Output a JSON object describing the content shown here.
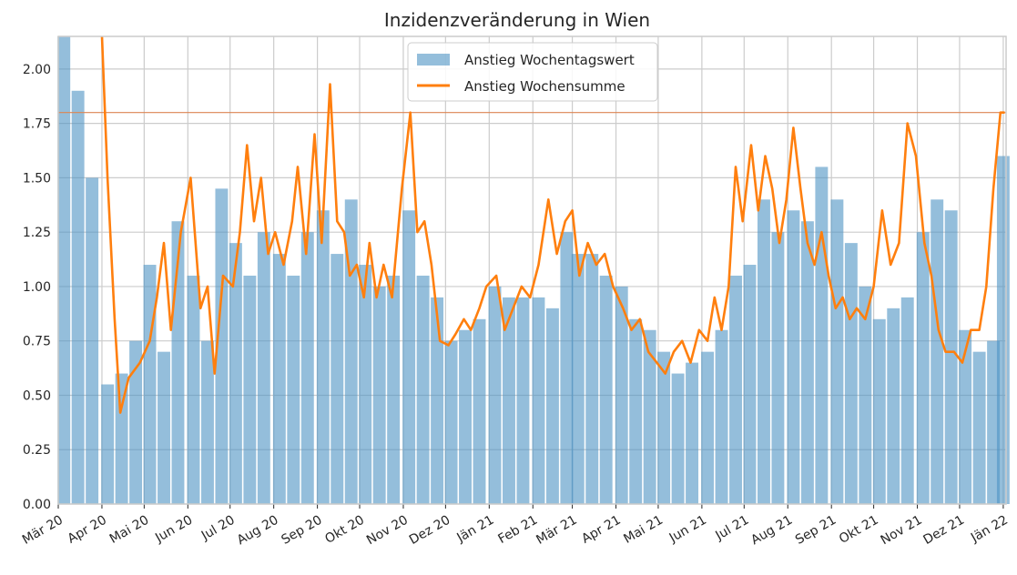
{
  "chart_data": {
    "type": "bar",
    "title": "Inzidenzveränderung in Wien",
    "xlabel": "",
    "ylabel": "",
    "ylim": [
      0,
      2.15
    ],
    "xlim": [
      "2020-03-01",
      "2022-01-03"
    ],
    "yticks": [
      "0.00",
      "0.25",
      "0.50",
      "0.75",
      "1.00",
      "1.25",
      "1.50",
      "1.75",
      "2.00"
    ],
    "xticks": [
      {
        "date": "2020-03-01",
        "label": "Mär 20"
      },
      {
        "date": "2020-04-01",
        "label": "Apr 20"
      },
      {
        "date": "2020-05-01",
        "label": "Mai 20"
      },
      {
        "date": "2020-06-01",
        "label": "Jun 20"
      },
      {
        "date": "2020-07-01",
        "label": "Jul 20"
      },
      {
        "date": "2020-08-01",
        "label": "Aug 20"
      },
      {
        "date": "2020-09-01",
        "label": "Sep 20"
      },
      {
        "date": "2020-10-01",
        "label": "Okt 20"
      },
      {
        "date": "2020-11-01",
        "label": "Nov 20"
      },
      {
        "date": "2020-12-01",
        "label": "Dez 20"
      },
      {
        "date": "2021-01-01",
        "label": "Jän 21"
      },
      {
        "date": "2021-02-01",
        "label": "Feb 21"
      },
      {
        "date": "2021-03-01",
        "label": "Mär 21"
      },
      {
        "date": "2021-04-01",
        "label": "Apr 21"
      },
      {
        "date": "2021-05-01",
        "label": "Mai 21"
      },
      {
        "date": "2021-06-01",
        "label": "Jun 21"
      },
      {
        "date": "2021-07-01",
        "label": "Jul 21"
      },
      {
        "date": "2021-08-01",
        "label": "Aug 21"
      },
      {
        "date": "2021-09-01",
        "label": "Sep 21"
      },
      {
        "date": "2021-10-01",
        "label": "Okt 21"
      },
      {
        "date": "2021-11-01",
        "label": "Nov 21"
      },
      {
        "date": "2021-12-01",
        "label": "Dez 21"
      },
      {
        "date": "2022-01-01",
        "label": "Jän 22"
      }
    ],
    "reference_line": {
      "y": 1.8,
      "color": "#dd8452"
    },
    "grid": true,
    "legend_position": "top-center",
    "colors": {
      "bars": "#4c92c3",
      "line": "#ff7f0e",
      "grid": "#cccccc",
      "axis": "#cccccc",
      "text": "#262626"
    },
    "series": [
      {
        "name": "Anstieg Wochentagswert",
        "type": "bar",
        "x": [
          "2020-03-05",
          "2020-03-15",
          "2020-03-25",
          "2020-04-05",
          "2020-04-15",
          "2020-04-25",
          "2020-05-05",
          "2020-05-15",
          "2020-05-25",
          "2020-06-05",
          "2020-06-15",
          "2020-06-25",
          "2020-07-05",
          "2020-07-15",
          "2020-07-25",
          "2020-08-05",
          "2020-08-15",
          "2020-08-25",
          "2020-09-05",
          "2020-09-15",
          "2020-09-25",
          "2020-10-05",
          "2020-10-15",
          "2020-10-25",
          "2020-11-05",
          "2020-11-15",
          "2020-11-25",
          "2020-12-05",
          "2020-12-15",
          "2020-12-25",
          "2021-01-05",
          "2021-01-15",
          "2021-01-25",
          "2021-02-05",
          "2021-02-15",
          "2021-02-25",
          "2021-03-05",
          "2021-03-15",
          "2021-03-25",
          "2021-04-05",
          "2021-04-15",
          "2021-04-25",
          "2021-05-05",
          "2021-05-15",
          "2021-05-25",
          "2021-06-05",
          "2021-06-15",
          "2021-06-25",
          "2021-07-05",
          "2021-07-15",
          "2021-07-25",
          "2021-08-05",
          "2021-08-15",
          "2021-08-25",
          "2021-09-05",
          "2021-09-15",
          "2021-09-25",
          "2021-10-05",
          "2021-10-15",
          "2021-10-25",
          "2021-11-05",
          "2021-11-15",
          "2021-11-25",
          "2021-12-05",
          "2021-12-15",
          "2021-12-25",
          "2022-01-01"
        ],
        "values": [
          2.15,
          1.9,
          1.5,
          0.55,
          0.6,
          0.75,
          1.1,
          0.7,
          1.3,
          1.05,
          0.75,
          1.45,
          1.2,
          1.05,
          1.25,
          1.15,
          1.05,
          1.25,
          1.35,
          1.15,
          1.4,
          1.1,
          1.0,
          1.05,
          1.35,
          1.05,
          0.95,
          0.75,
          0.8,
          0.85,
          1.0,
          0.95,
          0.95,
          0.95,
          0.9,
          1.25,
          1.15,
          1.15,
          1.05,
          1.0,
          0.85,
          0.8,
          0.7,
          0.6,
          0.65,
          0.7,
          0.8,
          1.05,
          1.1,
          1.4,
          1.25,
          1.35,
          1.3,
          1.55,
          1.4,
          1.2,
          1.0,
          0.85,
          0.9,
          0.95,
          1.25,
          1.4,
          1.35,
          0.8,
          0.7,
          0.75,
          1.6
        ]
      },
      {
        "name": "Anstieg Wochensumme",
        "type": "line",
        "x": [
          "2020-04-01",
          "2020-04-05",
          "2020-04-10",
          "2020-04-14",
          "2020-04-20",
          "2020-04-28",
          "2020-05-05",
          "2020-05-10",
          "2020-05-15",
          "2020-05-20",
          "2020-05-27",
          "2020-06-03",
          "2020-06-10",
          "2020-06-15",
          "2020-06-20",
          "2020-06-26",
          "2020-07-03",
          "2020-07-08",
          "2020-07-13",
          "2020-07-18",
          "2020-07-23",
          "2020-07-28",
          "2020-08-02",
          "2020-08-08",
          "2020-08-14",
          "2020-08-18",
          "2020-08-24",
          "2020-08-30",
          "2020-09-04",
          "2020-09-10",
          "2020-09-15",
          "2020-09-20",
          "2020-09-24",
          "2020-09-29",
          "2020-10-04",
          "2020-10-08",
          "2020-10-13",
          "2020-10-18",
          "2020-10-24",
          "2020-10-31",
          "2020-11-06",
          "2020-11-11",
          "2020-11-16",
          "2020-11-21",
          "2020-11-27",
          "2020-12-03",
          "2020-12-08",
          "2020-12-14",
          "2020-12-19",
          "2020-12-25",
          "2020-12-30",
          "2021-01-06",
          "2021-01-12",
          "2021-01-18",
          "2021-01-24",
          "2021-01-30",
          "2021-02-05",
          "2021-02-12",
          "2021-02-18",
          "2021-02-24",
          "2021-03-01",
          "2021-03-06",
          "2021-03-12",
          "2021-03-18",
          "2021-03-24",
          "2021-03-30",
          "2021-04-06",
          "2021-04-12",
          "2021-04-18",
          "2021-04-24",
          "2021-04-30",
          "2021-05-06",
          "2021-05-12",
          "2021-05-18",
          "2021-05-24",
          "2021-05-30",
          "2021-06-05",
          "2021-06-10",
          "2021-06-15",
          "2021-06-20",
          "2021-06-25",
          "2021-06-30",
          "2021-07-06",
          "2021-07-11",
          "2021-07-16",
          "2021-07-21",
          "2021-07-26",
          "2021-07-31",
          "2021-08-05",
          "2021-08-10",
          "2021-08-15",
          "2021-08-20",
          "2021-08-25",
          "2021-08-30",
          "2021-09-04",
          "2021-09-09",
          "2021-09-14",
          "2021-09-19",
          "2021-09-25",
          "2021-10-01",
          "2021-10-07",
          "2021-10-13",
          "2021-10-19",
          "2021-10-25",
          "2021-10-31",
          "2021-11-06",
          "2021-11-11",
          "2021-11-16",
          "2021-11-21",
          "2021-11-27",
          "2021-12-03",
          "2021-12-09",
          "2021-12-15",
          "2021-12-20",
          "2021-12-25",
          "2021-12-30",
          "2022-01-02"
        ],
        "values": [
          2.15,
          1.5,
          0.85,
          0.42,
          0.58,
          0.65,
          0.75,
          0.95,
          1.2,
          0.8,
          1.25,
          1.5,
          0.9,
          1.0,
          0.6,
          1.05,
          1.0,
          1.25,
          1.65,
          1.3,
          1.5,
          1.15,
          1.25,
          1.1,
          1.3,
          1.55,
          1.15,
          1.7,
          1.2,
          1.93,
          1.3,
          1.25,
          1.05,
          1.1,
          0.95,
          1.2,
          0.95,
          1.1,
          0.95,
          1.45,
          1.8,
          1.25,
          1.3,
          1.1,
          0.75,
          0.73,
          0.78,
          0.85,
          0.8,
          0.9,
          1.0,
          1.05,
          0.8,
          0.9,
          1.0,
          0.95,
          1.1,
          1.4,
          1.15,
          1.3,
          1.35,
          1.05,
          1.2,
          1.1,
          1.15,
          1.0,
          0.9,
          0.8,
          0.85,
          0.7,
          0.65,
          0.6,
          0.7,
          0.75,
          0.65,
          0.8,
          0.75,
          0.95,
          0.8,
          1.0,
          1.55,
          1.3,
          1.65,
          1.35,
          1.6,
          1.45,
          1.2,
          1.4,
          1.73,
          1.45,
          1.2,
          1.1,
          1.25,
          1.05,
          0.9,
          0.95,
          0.85,
          0.9,
          0.85,
          1.0,
          1.35,
          1.1,
          1.2,
          1.75,
          1.6,
          1.2,
          1.05,
          0.8,
          0.7,
          0.7,
          0.65,
          0.8,
          0.8,
          1.0,
          1.45,
          1.8,
          1.8
        ]
      }
    ]
  }
}
